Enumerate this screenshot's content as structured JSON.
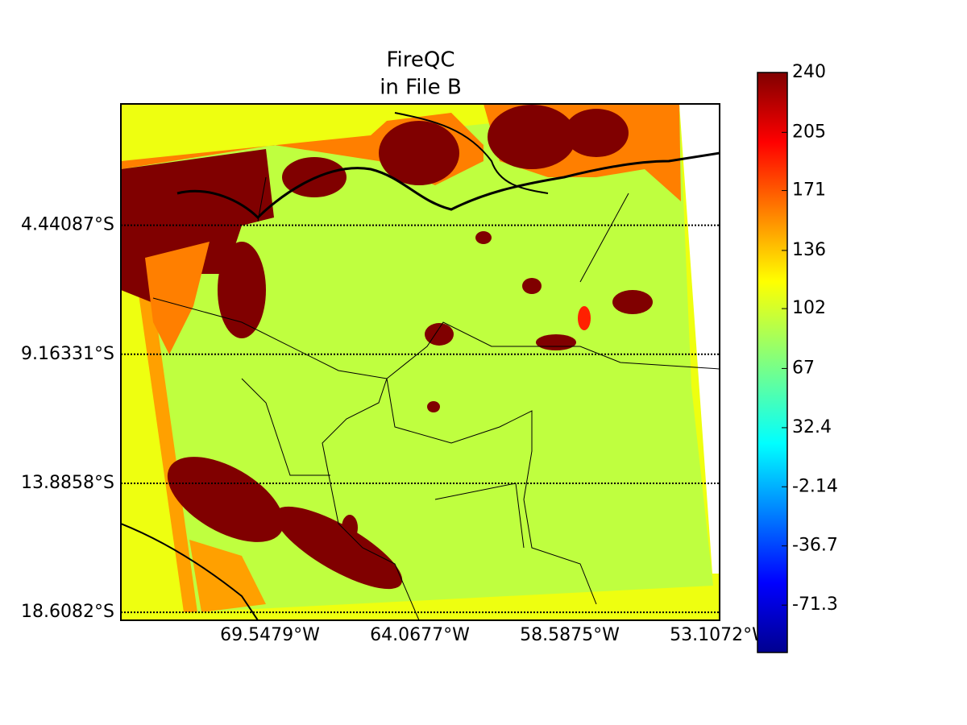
{
  "chart_data": {
    "type": "map",
    "title": "FireQC",
    "subtitle": "in File B",
    "xlim": [
      -75,
      -53.1072
    ],
    "ylim": [
      -18.9,
      0
    ],
    "xticks": [
      {
        "value": -69.5479,
        "label": "69.5479°W"
      },
      {
        "value": -64.0677,
        "label": "64.0677°W"
      },
      {
        "value": -58.5875,
        "label": "58.5875°W"
      },
      {
        "value": -53.1072,
        "label": "53.1072°W"
      }
    ],
    "yticks": [
      {
        "value": -4.44087,
        "label": "4.44087°S"
      },
      {
        "value": -9.16331,
        "label": "9.16331°S"
      },
      {
        "value": -13.8858,
        "label": "13.8858°S"
      },
      {
        "value": -18.6082,
        "label": "18.6082°S"
      }
    ],
    "grid": true,
    "colorbar": {
      "lim": [
        -99,
        240
      ],
      "ticks": [
        240,
        205,
        171,
        136,
        102,
        67,
        32.4,
        -2.14,
        -36.7,
        -71.3
      ]
    }
  }
}
